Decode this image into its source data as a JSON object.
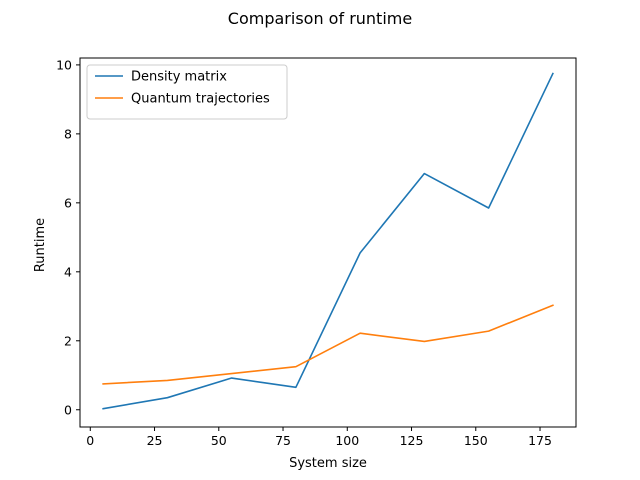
{
  "chart_data": {
    "type": "line",
    "title": "Comparison of runtime",
    "xlabel": "System size",
    "ylabel": "Runtime",
    "xlim": [
      -4,
      189
    ],
    "ylim": [
      -0.5,
      10.2
    ],
    "xticks": [
      0,
      25,
      50,
      75,
      100,
      125,
      150,
      175
    ],
    "yticks": [
      0,
      2,
      4,
      6,
      8,
      10
    ],
    "grid": false,
    "legend_position": "top-left",
    "x": [
      5,
      30,
      55,
      80,
      105,
      130,
      155,
      180
    ],
    "series": [
      {
        "name": "Density matrix",
        "color": "#1f77b4",
        "values": [
          0.03,
          0.35,
          0.92,
          0.65,
          4.55,
          6.85,
          5.85,
          9.75
        ]
      },
      {
        "name": "Quantum trajectories",
        "color": "#ff7f0e",
        "values": [
          0.75,
          0.85,
          1.05,
          1.25,
          2.22,
          1.98,
          2.28,
          3.03
        ]
      }
    ]
  }
}
